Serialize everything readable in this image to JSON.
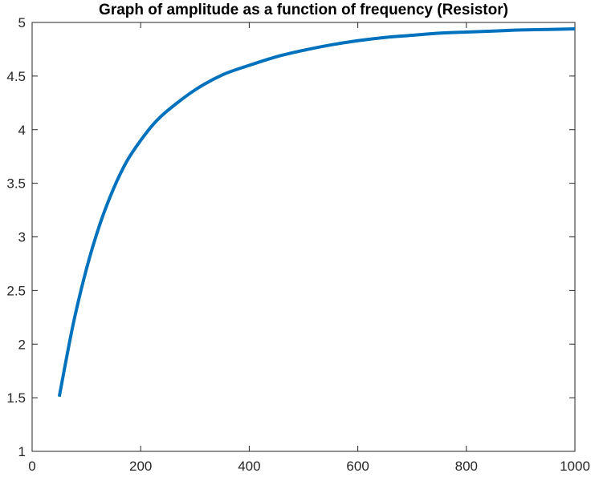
{
  "chart_data": {
    "type": "line",
    "title": "Graph of amplitude as a function of frequency (Resistor)",
    "xlabel": "",
    "ylabel": "",
    "xlim": [
      0,
      1000
    ],
    "ylim": [
      1,
      5
    ],
    "grid": false,
    "legend": "none",
    "x_ticks": [
      0,
      200,
      400,
      600,
      800,
      1000
    ],
    "y_ticks": [
      1,
      1.5,
      2,
      2.5,
      3,
      3.5,
      4,
      4.5,
      5
    ],
    "x_tick_labels": [
      "0",
      "200",
      "400",
      "600",
      "800",
      "1000"
    ],
    "y_tick_labels": [
      "1",
      "1.5",
      "2",
      "2.5",
      "3",
      "3.5",
      "4",
      "4.5",
      "5"
    ],
    "series": [
      {
        "color": "#0072BD",
        "x": [
          50,
          75,
          100,
          125,
          150,
          175,
          200,
          225,
          250,
          300,
          350,
          400,
          450,
          500,
          550,
          600,
          650,
          700,
          750,
          800,
          850,
          900,
          950,
          1000
        ],
        "y": [
          1.51,
          2.17,
          2.7,
          3.12,
          3.45,
          3.71,
          3.9,
          4.06,
          4.18,
          4.37,
          4.51,
          4.6,
          4.68,
          4.74,
          4.79,
          4.83,
          4.86,
          4.88,
          4.9,
          4.91,
          4.92,
          4.93,
          4.935,
          4.94
        ]
      }
    ]
  },
  "colors": {
    "axis": "#262626",
    "background": "#ffffff"
  }
}
